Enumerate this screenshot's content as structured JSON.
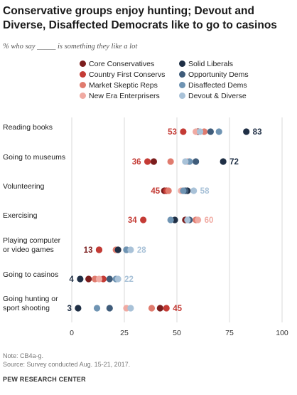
{
  "title": "Conservative groups enjoy hunting; Devout and Diverse, Disaffected Democrats like to go to casinos",
  "subtitle": "% who say _____ is something they like a lot",
  "notes": {
    "note": "Note: CB4a-g.",
    "source_line": "Source: Survey conducted Aug. 15-21, 2017.",
    "org": "PEW RESEARCH CENTER"
  },
  "chart_data": {
    "type": "scatter",
    "xlim": [
      0,
      100
    ],
    "xticks": [
      "0",
      "25",
      "50",
      "75",
      "100"
    ],
    "series": [
      {
        "name": "Core Conservatives",
        "color": "#7b1d1d"
      },
      {
        "name": "Country First Conservs",
        "color": "#c43b35"
      },
      {
        "name": "Market Skeptic Reps",
        "color": "#e07b6e"
      },
      {
        "name": "New Era Enterprisers",
        "color": "#f0aaa2"
      },
      {
        "name": "Solid Liberals",
        "color": "#1f2f45"
      },
      {
        "name": "Opportunity Dems",
        "color": "#3f5c7a"
      },
      {
        "name": "Disaffected Dems",
        "color": "#6f94b3"
      },
      {
        "name": "Devout & Diverse",
        "color": "#a9c2d8"
      }
    ],
    "categories": [
      {
        "label": [
          "Reading books"
        ],
        "values": [
          60,
          53,
          63,
          59,
          83,
          66,
          70,
          61
        ],
        "left_label": "53",
        "left_series": 1,
        "right_label": "83",
        "right_series": 4
      },
      {
        "label": [
          "Going to museums"
        ],
        "values": [
          39,
          36,
          47,
          55,
          72,
          59,
          56,
          54
        ],
        "left_label": "36",
        "left_series": 1,
        "right_label": "72",
        "right_series": 4
      },
      {
        "label": [
          "Volunteering"
        ],
        "values": [
          44,
          45,
          46,
          52,
          55,
          54,
          53,
          58
        ],
        "left_label": "45",
        "left_series": 1,
        "right_label": "58",
        "right_series": 7
      },
      {
        "label": [
          "Exercising"
        ],
        "values": [
          54,
          34,
          59,
          60,
          49,
          56,
          47,
          55
        ],
        "left_label": "34",
        "left_series": 1,
        "right_label": "60",
        "right_series": 3
      },
      {
        "label": [
          "Playing computer",
          "or video games"
        ],
        "values": [
          13,
          13,
          21,
          22,
          22,
          26,
          26,
          28
        ],
        "left_label": "13",
        "left_series": 0,
        "right_label": "28",
        "right_series": 7
      },
      {
        "label": [
          "Going to casinos"
        ],
        "values": [
          8,
          15,
          11,
          13,
          4,
          18,
          21,
          22
        ],
        "left_label": "4",
        "left_series": 4,
        "right_label": "22",
        "right_series": 7
      },
      {
        "label": [
          "Going hunting or",
          "sport shooting"
        ],
        "values": [
          42,
          45,
          38,
          26,
          3,
          18,
          12,
          28
        ],
        "left_label": "3",
        "left_series": 4,
        "right_label": "45",
        "right_series": 1
      }
    ]
  }
}
